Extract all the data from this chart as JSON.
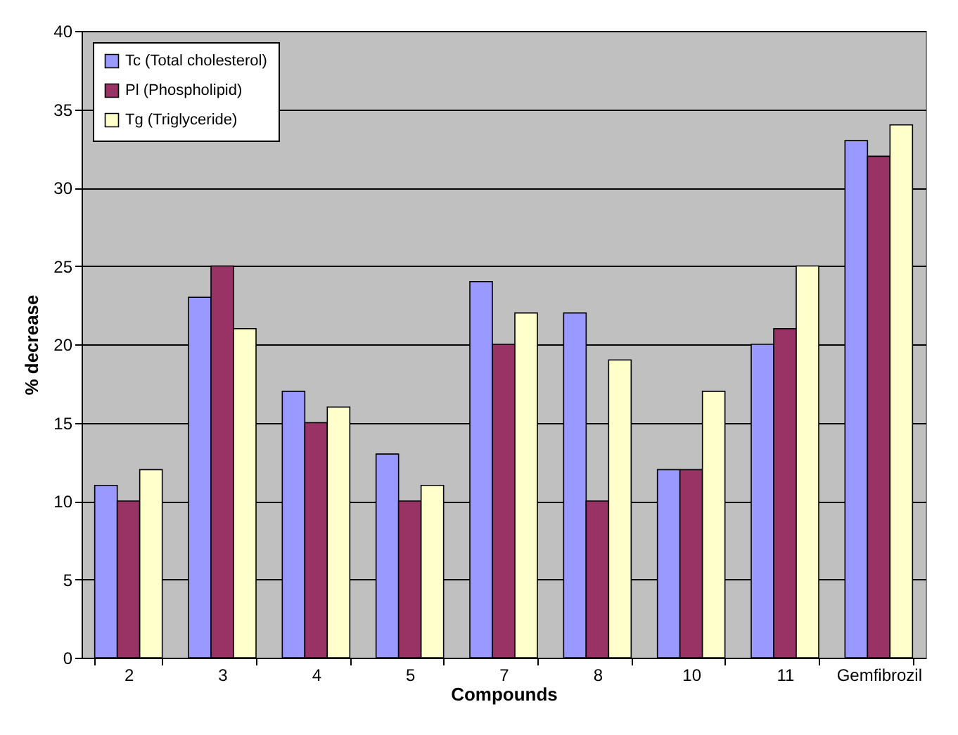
{
  "chart_data": {
    "type": "bar",
    "xlabel": "Compounds",
    "ylabel": "% decrease",
    "categories": [
      "2",
      "3",
      "4",
      "5",
      "7",
      "8",
      "10",
      "11",
      "Gemfibrozil"
    ],
    "series": [
      {
        "name": "Tc (Total cholesterol)",
        "color": "#9999ff",
        "values": [
          11,
          23,
          17,
          13,
          24,
          22,
          12,
          20,
          33
        ]
      },
      {
        "name": "Pl (Phospholipid)",
        "color": "#993366",
        "values": [
          10,
          25,
          15,
          10,
          20,
          10,
          12,
          21,
          32
        ]
      },
      {
        "name": "Tg (Triglyceride)",
        "color": "#ffffcc",
        "values": [
          12,
          21,
          16,
          11,
          22,
          19,
          17,
          25,
          34
        ]
      }
    ],
    "ylim": [
      0,
      40
    ],
    "yticks": [
      0,
      5,
      10,
      15,
      20,
      25,
      30,
      35,
      40
    ],
    "grid": "y",
    "legend": "top left"
  }
}
